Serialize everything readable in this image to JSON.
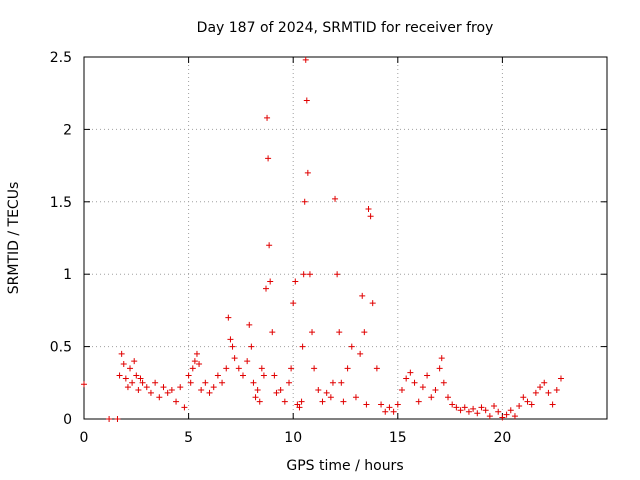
{
  "chart_data": {
    "type": "scatter",
    "title": "Day 187 of 2024, SRMTID for receiver froy",
    "xlabel": "GPS time / hours",
    "ylabel": "SRMTID / TECUs",
    "xlim": [
      0,
      25
    ],
    "ylim": [
      0,
      2.5
    ],
    "xticks": [
      0,
      5,
      10,
      15,
      20
    ],
    "xtick_labels": [
      "0",
      "5",
      "10",
      "15",
      "20"
    ],
    "yticks": [
      0,
      0.5,
      1,
      1.5,
      2,
      2.5
    ],
    "ytick_labels": [
      "0",
      "0.5",
      "1",
      "1.5",
      "2",
      "2.5"
    ],
    "grid": true,
    "marker": "plus",
    "color": "#e00000",
    "series": [
      {
        "name": "SRMTID",
        "x": [
          0.0,
          1.2,
          1.6,
          1.7,
          1.8,
          1.9,
          2.0,
          2.1,
          2.2,
          2.3,
          2.4,
          2.5,
          2.6,
          2.7,
          2.8,
          3.0,
          3.2,
          3.4,
          3.6,
          3.8,
          4.0,
          4.2,
          4.4,
          4.6,
          4.8,
          5.0,
          5.1,
          5.2,
          5.3,
          5.4,
          5.5,
          5.6,
          5.8,
          6.0,
          6.2,
          6.4,
          6.6,
          6.8,
          6.9,
          7.0,
          7.1,
          7.2,
          7.4,
          7.6,
          7.8,
          7.9,
          8.0,
          8.1,
          8.2,
          8.3,
          8.4,
          8.5,
          8.6,
          8.7,
          8.75,
          8.8,
          8.85,
          8.9,
          9.0,
          9.1,
          9.2,
          9.4,
          9.6,
          9.8,
          9.9,
          10.0,
          10.1,
          10.2,
          10.3,
          10.4,
          10.45,
          10.5,
          10.55,
          10.6,
          10.65,
          10.7,
          10.8,
          10.9,
          11.0,
          11.2,
          11.4,
          11.6,
          11.8,
          11.9,
          12.0,
          12.1,
          12.2,
          12.3,
          12.4,
          12.6,
          12.8,
          13.0,
          13.2,
          13.3,
          13.4,
          13.5,
          13.6,
          13.7,
          13.8,
          14.0,
          14.2,
          14.4,
          14.6,
          14.8,
          15.0,
          15.2,
          15.4,
          15.6,
          15.8,
          16.0,
          16.2,
          16.4,
          16.6,
          16.8,
          17.0,
          17.1,
          17.2,
          17.4,
          17.6,
          17.8,
          18.0,
          18.2,
          18.4,
          18.6,
          18.8,
          19.0,
          19.2,
          19.4,
          19.6,
          19.8,
          20.0,
          20.2,
          20.4,
          20.6,
          20.8,
          21.0,
          21.2,
          21.4,
          21.6,
          21.8,
          22.0,
          22.2,
          22.4,
          22.6,
          22.8
        ],
        "y": [
          0.24,
          0.0,
          0.0,
          0.3,
          0.45,
          0.38,
          0.28,
          0.22,
          0.35,
          0.25,
          0.4,
          0.3,
          0.2,
          0.28,
          0.25,
          0.22,
          0.18,
          0.25,
          0.15,
          0.22,
          0.18,
          0.2,
          0.12,
          0.22,
          0.08,
          0.3,
          0.25,
          0.35,
          0.4,
          0.45,
          0.38,
          0.2,
          0.25,
          0.18,
          0.22,
          0.3,
          0.25,
          0.35,
          0.7,
          0.55,
          0.5,
          0.42,
          0.35,
          0.3,
          0.4,
          0.65,
          0.5,
          0.25,
          0.15,
          0.2,
          0.12,
          0.35,
          0.3,
          0.9,
          2.08,
          1.8,
          1.2,
          0.95,
          0.6,
          0.3,
          0.18,
          0.2,
          0.12,
          0.25,
          0.35,
          0.8,
          0.95,
          0.1,
          0.08,
          0.12,
          0.5,
          1.0,
          1.5,
          2.48,
          2.2,
          1.7,
          1.0,
          0.6,
          0.35,
          0.2,
          0.12,
          0.18,
          0.15,
          0.25,
          1.52,
          1.0,
          0.6,
          0.25,
          0.12,
          0.35,
          0.5,
          0.15,
          0.45,
          0.85,
          0.6,
          0.1,
          1.45,
          1.4,
          0.8,
          0.35,
          0.1,
          0.05,
          0.08,
          0.05,
          0.1,
          0.2,
          0.28,
          0.32,
          0.25,
          0.12,
          0.22,
          0.3,
          0.15,
          0.2,
          0.35,
          0.42,
          0.25,
          0.15,
          0.1,
          0.08,
          0.06,
          0.08,
          0.05,
          0.07,
          0.04,
          0.08,
          0.06,
          0.02,
          0.09,
          0.05,
          0.01,
          0.03,
          0.06,
          0.02,
          0.09,
          0.15,
          0.12,
          0.1,
          0.18,
          0.22,
          0.25,
          0.18,
          0.1,
          0.2,
          0.28
        ]
      }
    ]
  }
}
